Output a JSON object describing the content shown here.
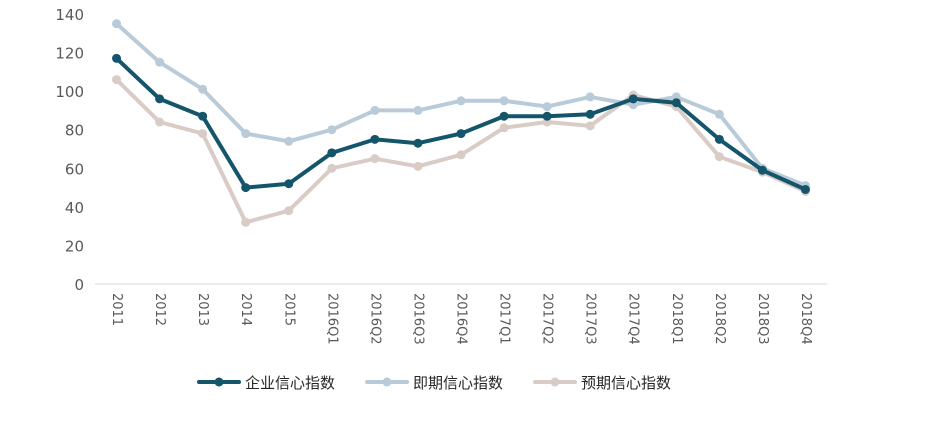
{
  "chart_data": {
    "type": "line",
    "title": "",
    "xlabel": "",
    "ylabel": "",
    "ylim": [
      0,
      140
    ],
    "yticks": [
      0,
      20,
      40,
      60,
      80,
      100,
      120,
      140
    ],
    "grid": false,
    "legend_position": "bottom",
    "categories": [
      "2011",
      "2012",
      "2013",
      "2014",
      "2015",
      "2016Q1",
      "2016Q2",
      "2016Q3",
      "2016Q4",
      "2017Q1",
      "2017Q2",
      "2017Q3",
      "2017Q4",
      "2018Q1",
      "2018Q2",
      "2018Q3",
      "2018Q4"
    ],
    "series": [
      {
        "name": "企业信心指数",
        "color": "#14556b",
        "values": [
          117,
          96,
          87,
          50,
          52,
          68,
          75,
          73,
          78,
          87,
          87,
          88,
          96,
          94,
          75,
          59,
          49
        ]
      },
      {
        "name": "即期信心指数",
        "color": "#b9cbd9",
        "values": [
          135,
          115,
          101,
          78,
          74,
          80,
          90,
          90,
          95,
          95,
          92,
          97,
          93,
          97,
          88,
          60,
          51
        ]
      },
      {
        "name": "预期信心指数",
        "color": "#d9cbc5",
        "values": [
          106,
          84,
          78,
          32,
          38,
          60,
          65,
          61,
          67,
          81,
          84,
          82,
          98,
          92,
          66,
          58,
          48
        ]
      }
    ]
  }
}
